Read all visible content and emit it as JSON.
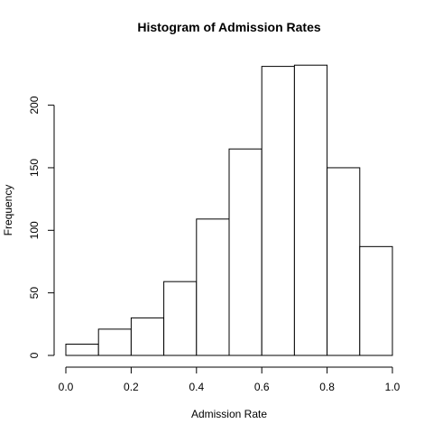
{
  "chart_data": {
    "type": "bar",
    "title": "Histogram of Admission Rates",
    "xlabel": "Admission Rate",
    "ylabel": "Frequency",
    "bins": [
      {
        "x0": 0.0,
        "x1": 0.1,
        "count": 9
      },
      {
        "x0": 0.1,
        "x1": 0.2,
        "count": 21
      },
      {
        "x0": 0.2,
        "x1": 0.3,
        "count": 30
      },
      {
        "x0": 0.3,
        "x1": 0.4,
        "count": 59
      },
      {
        "x0": 0.4,
        "x1": 0.5,
        "count": 109
      },
      {
        "x0": 0.5,
        "x1": 0.6,
        "count": 165
      },
      {
        "x0": 0.6,
        "x1": 0.7,
        "count": 231
      },
      {
        "x0": 0.7,
        "x1": 0.8,
        "count": 232
      },
      {
        "x0": 0.8,
        "x1": 0.9,
        "count": 150
      },
      {
        "x0": 0.9,
        "x1": 1.0,
        "count": 87
      }
    ],
    "xlim": [
      0.0,
      1.0
    ],
    "ylim": [
      0,
      232
    ],
    "xticks": [
      0.0,
      0.2,
      0.4,
      0.6,
      0.8,
      1.0
    ],
    "xtick_labels": [
      "0.0",
      "0.2",
      "0.4",
      "0.6",
      "0.8",
      "1.0"
    ],
    "yticks": [
      0,
      50,
      100,
      150,
      200
    ],
    "ytick_labels": [
      "0",
      "50",
      "100",
      "150",
      "200"
    ],
    "grid": false,
    "legend": "none",
    "bar_fill": "#ffffff",
    "bar_stroke": "#000000"
  }
}
